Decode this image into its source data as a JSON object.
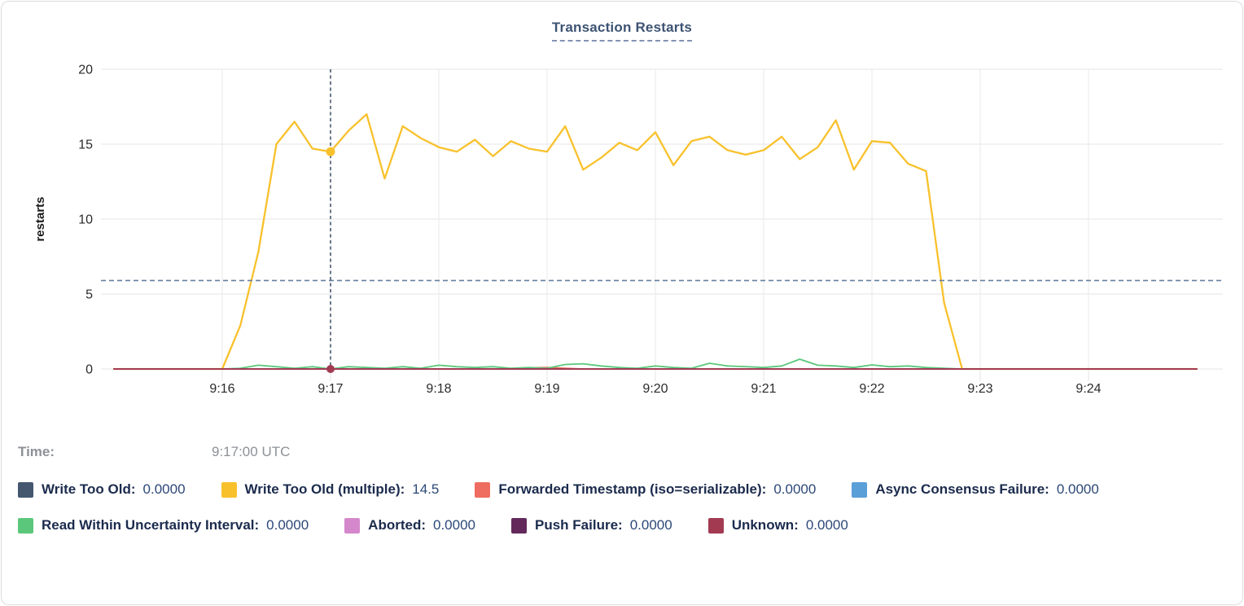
{
  "title": "Transaction Restarts",
  "tooltip": {
    "time_label": "Time:",
    "time_value": "9:17:00 UTC"
  },
  "colors": {
    "grid": "#e9e9e9",
    "axis_text": "#2b2b2b",
    "crosshair_vertical": "#47596f",
    "crosshair_horizontal": "#64809f",
    "title_text": "#3d5373",
    "legend_label": "#1b2b4d",
    "legend_value": "#2c4878"
  },
  "legend": [
    {
      "label": "Write Too Old:",
      "value": "0.0000",
      "series": 0
    },
    {
      "label": "Write Too Old (multiple):",
      "value": "14.5",
      "series": 1
    },
    {
      "label": "Forwarded Timestamp (iso=serializable):",
      "value": "0.0000",
      "series": 2
    },
    {
      "label": "Async Consensus Failure:",
      "value": "0.0000",
      "series": 3
    },
    {
      "label": "Read Within Uncertainty Interval:",
      "value": "0.0000",
      "series": 4
    },
    {
      "label": "Aborted:",
      "value": "0.0000",
      "series": 5
    },
    {
      "label": "Push Failure:",
      "value": "0.0000",
      "series": 6
    },
    {
      "label": "Unknown:",
      "value": "0.0000",
      "series": 7
    }
  ],
  "chart_data": {
    "type": "line",
    "title": "Transaction Restarts",
    "ylabel": "restarts",
    "ylim": [
      0,
      20
    ],
    "y_ticks": [
      0,
      5,
      10,
      15,
      20
    ],
    "x_tick_labels": [
      "9:16",
      "9:17",
      "9:18",
      "9:19",
      "9:20",
      "9:21",
      "9:22",
      "9:23",
      "9:24"
    ],
    "x_start_time": "9:15:00",
    "x_interval_seconds": 10,
    "n_points": 61,
    "grid": true,
    "legend_position": "bottom",
    "series": [
      {
        "name": "Write Too Old",
        "color": "#45576f",
        "width": 1.6,
        "constant": 0
      },
      {
        "name": "Write Too Old (multiple)",
        "color": "#f8c12c",
        "width": 2.3,
        "values": [
          0,
          0,
          0,
          0,
          0,
          0,
          0,
          2.9,
          7.8,
          15,
          16.5,
          14.7,
          14.5,
          15.9,
          17,
          12.7,
          16.2,
          15.4,
          14.8,
          14.5,
          15.3,
          14.2,
          15.2,
          14.7,
          14.5,
          16.2,
          13.3,
          14.1,
          15.1,
          14.6,
          15.8,
          13.6,
          15.2,
          15.5,
          14.6,
          14.3,
          14.6,
          15.5,
          14,
          14.8,
          16.6,
          13.3,
          15.2,
          15.1,
          13.7,
          13.2,
          4.4,
          0,
          0,
          0,
          0,
          0,
          0,
          0,
          0,
          0,
          0,
          0,
          0,
          0,
          0
        ]
      },
      {
        "name": "Forwarded Timestamp (iso=serializable)",
        "color": "#ef6d60",
        "width": 1.8,
        "values": [
          0,
          0,
          0,
          0,
          0,
          0,
          0,
          0,
          0,
          0,
          0,
          0,
          0,
          0,
          0,
          0,
          0,
          0,
          0,
          0,
          0,
          0,
          0,
          0.08,
          0.1,
          0.05,
          0,
          0,
          0,
          0,
          0,
          0,
          0,
          0,
          0,
          0,
          0,
          0,
          0,
          0,
          0,
          0,
          0,
          0,
          0,
          0,
          0,
          0,
          0,
          0,
          0,
          0,
          0,
          0,
          0,
          0,
          0,
          0,
          0,
          0,
          0
        ]
      },
      {
        "name": "Async Consensus Failure",
        "color": "#5b9fd8",
        "width": 1.6,
        "constant": 0
      },
      {
        "name": "Read Within Uncertainty Interval",
        "color": "#5bc77b",
        "width": 1.8,
        "values": [
          0,
          0,
          0,
          0,
          0,
          0,
          0,
          0.05,
          0.25,
          0.15,
          0.05,
          0.15,
          0,
          0.15,
          0.1,
          0.05,
          0.15,
          0.05,
          0.25,
          0.15,
          0.1,
          0.15,
          0.05,
          0.1,
          0.05,
          0.3,
          0.35,
          0.2,
          0.1,
          0.05,
          0.2,
          0.1,
          0.05,
          0.38,
          0.2,
          0.16,
          0.1,
          0.2,
          0.65,
          0.25,
          0.2,
          0.1,
          0.27,
          0.15,
          0.2,
          0.1,
          0.05,
          0,
          0,
          0,
          0,
          0,
          0,
          0,
          0,
          0,
          0,
          0,
          0,
          0,
          0
        ]
      },
      {
        "name": "Aborted",
        "color": "#d488cb",
        "width": 1.6,
        "constant": 0
      },
      {
        "name": "Push Failure",
        "color": "#63295b",
        "width": 1.6,
        "constant": 0
      },
      {
        "name": "Unknown",
        "color": "#a23b52",
        "width": 2,
        "constant": 0
      }
    ],
    "hover": {
      "time": "9:17:00 UTC",
      "t_seconds": 120,
      "crosshair_y_value": 5.9,
      "points": [
        {
          "series": "Write Too Old (multiple)",
          "value": 14.5,
          "radius": 5.5
        },
        {
          "series": "Unknown",
          "value": 0,
          "radius": 5
        }
      ]
    }
  }
}
